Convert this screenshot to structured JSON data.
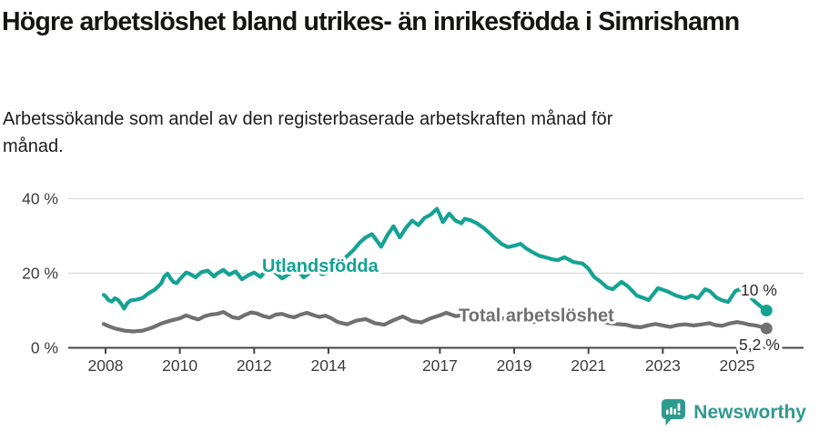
{
  "header": {
    "title": "Högre arbetslöshet bland utrikes- än inrikesfödda i Simrishamn",
    "subtitle": "Arbetssökande som andel av den registerbaserade arbetskraften månad för månad."
  },
  "footer": {
    "brand": "Newsworthy"
  },
  "colors": {
    "accent_teal": "#14a294",
    "line_gray": "#707070",
    "axis": "#454545",
    "grid": "#dcdcdc",
    "tick_text": "#3d3d3d",
    "end_label_text": "#2b2b2b",
    "brand_teal": "#2f9a8f"
  },
  "chart_data": {
    "type": "line",
    "title": "Högre arbetslöshet bland utrikes- än inrikesfödda i Simrishamn",
    "subtitle": "Arbetssökande som andel av den registerbaserade arbetskraften månad för månad.",
    "xlabel": "",
    "ylabel": "",
    "grid": "horizontal",
    "legend_position": "inline-labels",
    "x_range": [
      2007.9,
      2025.95
    ],
    "y_range": [
      0,
      40
    ],
    "x_ticks": [
      2008,
      2010,
      2012,
      2014,
      2017,
      2019,
      2021,
      2023,
      2025
    ],
    "x_tick_labels": [
      "2008",
      "2010",
      "2012",
      "2014",
      "2017",
      "2019",
      "2021",
      "2023",
      "2025"
    ],
    "y_ticks": [
      0,
      20,
      40
    ],
    "y_tick_labels": [
      "0 %",
      "20 %",
      "40 %"
    ],
    "series": [
      {
        "name": "Utlandsfödda",
        "color": "#14a294",
        "end_label": "10 %",
        "end_value": 10.0,
        "points": [
          [
            2007.95,
            14.2
          ],
          [
            2008.0,
            13.8
          ],
          [
            2008.08,
            12.8
          ],
          [
            2008.17,
            12.4
          ],
          [
            2008.25,
            13.3
          ],
          [
            2008.33,
            12.9
          ],
          [
            2008.42,
            11.8
          ],
          [
            2008.5,
            10.5
          ],
          [
            2008.58,
            11.9
          ],
          [
            2008.67,
            12.7
          ],
          [
            2008.83,
            12.9
          ],
          [
            2009.0,
            13.4
          ],
          [
            2009.17,
            14.7
          ],
          [
            2009.33,
            15.6
          ],
          [
            2009.5,
            17.3
          ],
          [
            2009.58,
            19.1
          ],
          [
            2009.67,
            19.9
          ],
          [
            2009.75,
            18.6
          ],
          [
            2009.83,
            17.6
          ],
          [
            2009.92,
            17.4
          ],
          [
            2010.0,
            18.4
          ],
          [
            2010.17,
            20.2
          ],
          [
            2010.25,
            19.9
          ],
          [
            2010.33,
            19.5
          ],
          [
            2010.42,
            18.9
          ],
          [
            2010.58,
            20.3
          ],
          [
            2010.75,
            20.7
          ],
          [
            2010.92,
            19.1
          ],
          [
            2011.0,
            19.9
          ],
          [
            2011.17,
            20.9
          ],
          [
            2011.33,
            19.6
          ],
          [
            2011.5,
            20.5
          ],
          [
            2011.67,
            18.4
          ],
          [
            2011.83,
            19.4
          ],
          [
            2012.0,
            20.2
          ],
          [
            2012.17,
            19.0
          ],
          [
            2012.33,
            20.9
          ],
          [
            2012.42,
            21.3
          ],
          [
            2012.58,
            20.1
          ],
          [
            2012.75,
            18.6
          ],
          [
            2012.92,
            19.7
          ],
          [
            2013.08,
            20.6
          ],
          [
            2013.25,
            19.9
          ],
          [
            2013.33,
            18.9
          ],
          [
            2013.5,
            20.1
          ],
          [
            2013.67,
            20.9
          ],
          [
            2013.83,
            19.7
          ],
          [
            2014.0,
            20.4
          ],
          [
            2014.17,
            21.4
          ],
          [
            2014.33,
            23.0
          ],
          [
            2014.5,
            24.6
          ],
          [
            2014.67,
            26.2
          ],
          [
            2014.83,
            28.1
          ],
          [
            2015.0,
            29.6
          ],
          [
            2015.17,
            30.5
          ],
          [
            2015.33,
            28.4
          ],
          [
            2015.42,
            27.1
          ],
          [
            2015.58,
            30.1
          ],
          [
            2015.75,
            32.6
          ],
          [
            2015.92,
            29.6
          ],
          [
            2016.08,
            32.1
          ],
          [
            2016.25,
            34.1
          ],
          [
            2016.42,
            32.9
          ],
          [
            2016.58,
            34.8
          ],
          [
            2016.75,
            35.7
          ],
          [
            2016.92,
            37.3
          ],
          [
            2017.0,
            35.6
          ],
          [
            2017.08,
            33.7
          ],
          [
            2017.25,
            36.0
          ],
          [
            2017.42,
            34.1
          ],
          [
            2017.58,
            33.4
          ],
          [
            2017.67,
            34.6
          ],
          [
            2017.83,
            34.2
          ],
          [
            2018.0,
            33.4
          ],
          [
            2018.17,
            32.2
          ],
          [
            2018.33,
            30.8
          ],
          [
            2018.5,
            29.2
          ],
          [
            2018.67,
            27.8
          ],
          [
            2018.83,
            27.0
          ],
          [
            2019.0,
            27.4
          ],
          [
            2019.17,
            27.9
          ],
          [
            2019.33,
            26.6
          ],
          [
            2019.5,
            25.6
          ],
          [
            2019.67,
            24.7
          ],
          [
            2019.83,
            24.3
          ],
          [
            2020.0,
            23.8
          ],
          [
            2020.17,
            23.5
          ],
          [
            2020.35,
            24.3
          ],
          [
            2020.6,
            23.0
          ],
          [
            2020.84,
            22.6
          ],
          [
            2021.0,
            21.2
          ],
          [
            2021.15,
            19.0
          ],
          [
            2021.33,
            17.7
          ],
          [
            2021.5,
            16.2
          ],
          [
            2021.65,
            15.7
          ],
          [
            2021.89,
            17.7
          ],
          [
            2022.06,
            16.5
          ],
          [
            2022.3,
            14.0
          ],
          [
            2022.5,
            13.3
          ],
          [
            2022.62,
            12.8
          ],
          [
            2022.87,
            16.0
          ],
          [
            2023.11,
            15.2
          ],
          [
            2023.36,
            14.0
          ],
          [
            2023.6,
            13.3
          ],
          [
            2023.78,
            14.0
          ],
          [
            2023.95,
            13.3
          ],
          [
            2024.14,
            15.7
          ],
          [
            2024.27,
            15.2
          ],
          [
            2024.44,
            13.5
          ],
          [
            2024.58,
            12.8
          ],
          [
            2024.76,
            12.3
          ],
          [
            2024.95,
            15.2
          ],
          [
            2025.07,
            15.7
          ],
          [
            2025.32,
            14.0
          ],
          [
            2025.49,
            12.3
          ],
          [
            2025.66,
            10.9
          ],
          [
            2025.79,
            10.0
          ]
        ]
      },
      {
        "name": "Total arbetslöshet",
        "color": "#707070",
        "end_label": "5,2 %",
        "end_value": 5.2,
        "points": [
          [
            2007.95,
            6.4
          ],
          [
            2008.08,
            5.8
          ],
          [
            2008.25,
            5.2
          ],
          [
            2008.5,
            4.6
          ],
          [
            2008.75,
            4.4
          ],
          [
            2009.0,
            4.6
          ],
          [
            2009.25,
            5.4
          ],
          [
            2009.5,
            6.5
          ],
          [
            2009.75,
            7.3
          ],
          [
            2010.0,
            7.9
          ],
          [
            2010.17,
            8.7
          ],
          [
            2010.33,
            8.1
          ],
          [
            2010.5,
            7.6
          ],
          [
            2010.67,
            8.5
          ],
          [
            2010.83,
            8.9
          ],
          [
            2011.0,
            9.1
          ],
          [
            2011.17,
            9.6
          ],
          [
            2011.42,
            8.2
          ],
          [
            2011.58,
            7.9
          ],
          [
            2011.75,
            8.8
          ],
          [
            2011.92,
            9.5
          ],
          [
            2012.08,
            9.2
          ],
          [
            2012.25,
            8.5
          ],
          [
            2012.42,
            8.1
          ],
          [
            2012.58,
            8.9
          ],
          [
            2012.75,
            9.1
          ],
          [
            2012.92,
            8.5
          ],
          [
            2013.08,
            8.2
          ],
          [
            2013.25,
            8.9
          ],
          [
            2013.42,
            9.4
          ],
          [
            2013.58,
            8.8
          ],
          [
            2013.75,
            8.3
          ],
          [
            2013.92,
            8.6
          ],
          [
            2014.08,
            7.9
          ],
          [
            2014.25,
            6.9
          ],
          [
            2014.5,
            6.3
          ],
          [
            2014.75,
            7.3
          ],
          [
            2015.0,
            7.7
          ],
          [
            2015.25,
            6.6
          ],
          [
            2015.5,
            6.2
          ],
          [
            2015.75,
            7.4
          ],
          [
            2016.0,
            8.4
          ],
          [
            2016.25,
            7.2
          ],
          [
            2016.5,
            6.8
          ],
          [
            2016.75,
            7.9
          ],
          [
            2017.0,
            8.7
          ],
          [
            2017.17,
            9.4
          ],
          [
            2017.42,
            8.5
          ],
          [
            2017.67,
            8.8
          ],
          [
            2017.92,
            8.9
          ],
          [
            2018.17,
            8.2
          ],
          [
            2018.42,
            7.7
          ],
          [
            2018.67,
            7.9
          ],
          [
            2019.0,
            7.8
          ],
          [
            2019.25,
            7.2
          ],
          [
            2019.5,
            6.9
          ],
          [
            2019.75,
            7.2
          ],
          [
            2020.0,
            7.6
          ],
          [
            2020.25,
            8.2
          ],
          [
            2020.5,
            8.5
          ],
          [
            2020.75,
            8.2
          ],
          [
            2021.0,
            7.8
          ],
          [
            2021.25,
            7.2
          ],
          [
            2021.5,
            6.7
          ],
          [
            2021.75,
            6.4
          ],
          [
            2022.0,
            6.2
          ],
          [
            2022.2,
            5.7
          ],
          [
            2022.4,
            5.5
          ],
          [
            2022.6,
            6.0
          ],
          [
            2022.8,
            6.4
          ],
          [
            2023.0,
            6.0
          ],
          [
            2023.2,
            5.6
          ],
          [
            2023.4,
            6.1
          ],
          [
            2023.6,
            6.3
          ],
          [
            2023.83,
            6.0
          ],
          [
            2024.0,
            6.2
          ],
          [
            2024.25,
            6.6
          ],
          [
            2024.42,
            6.1
          ],
          [
            2024.6,
            5.9
          ],
          [
            2024.83,
            6.6
          ],
          [
            2025.0,
            6.9
          ],
          [
            2025.17,
            6.6
          ],
          [
            2025.33,
            6.2
          ],
          [
            2025.5,
            6.0
          ],
          [
            2025.66,
            5.6
          ],
          [
            2025.79,
            5.2
          ]
        ]
      }
    ]
  }
}
